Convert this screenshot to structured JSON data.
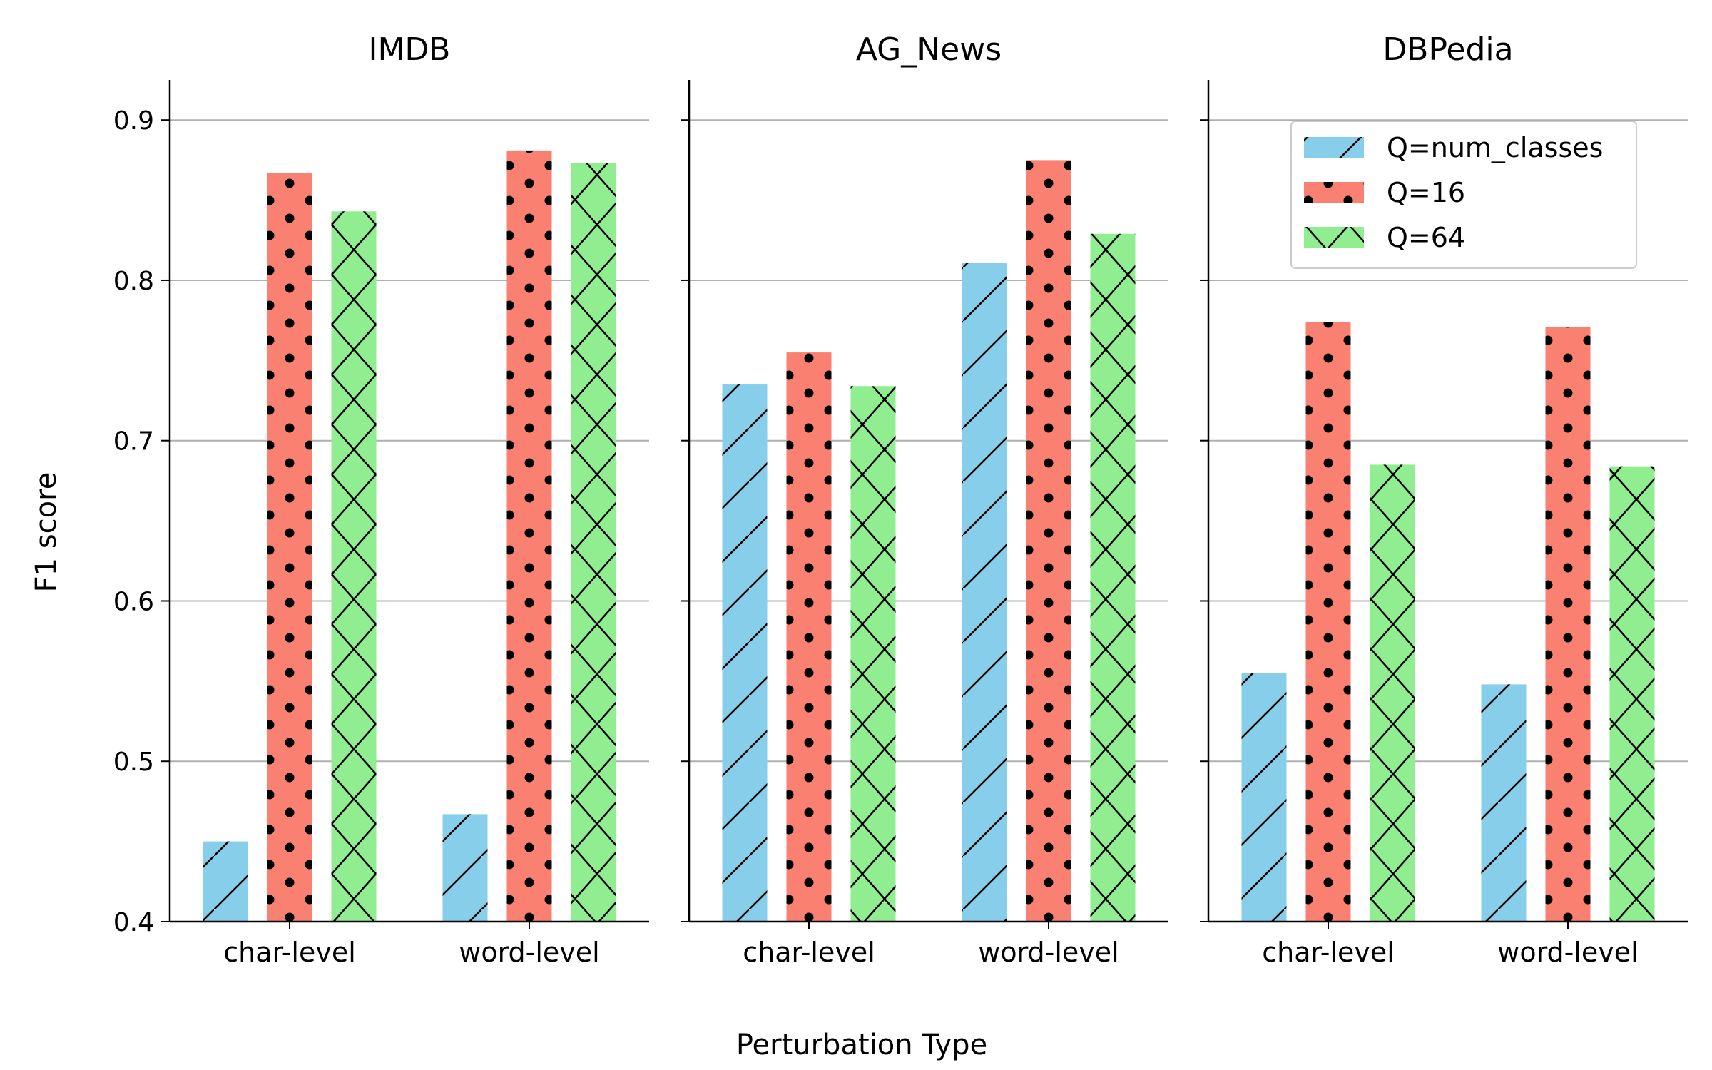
{
  "figure": {
    "ylabel": "F1 score",
    "xlabel": "Perturbation Type"
  },
  "chart_data": [
    {
      "type": "bar",
      "title": "IMDB",
      "categories": [
        "char-level",
        "word-level"
      ],
      "series": [
        {
          "name": "Q=num_classes",
          "values": [
            0.45,
            0.467
          ]
        },
        {
          "name": "Q=16",
          "values": [
            0.867,
            0.881
          ]
        },
        {
          "name": "Q=64",
          "values": [
            0.843,
            0.873
          ]
        }
      ],
      "ylim": [
        0.4,
        0.925
      ],
      "yticks": [
        "0.4",
        "0.5",
        "0.6",
        "0.7",
        "0.8",
        "0.9"
      ],
      "grid": true
    },
    {
      "type": "bar",
      "title": "AG_News",
      "categories": [
        "char-level",
        "word-level"
      ],
      "series": [
        {
          "name": "Q=num_classes",
          "values": [
            0.735,
            0.811
          ]
        },
        {
          "name": "Q=16",
          "values": [
            0.755,
            0.875
          ]
        },
        {
          "name": "Q=64",
          "values": [
            0.734,
            0.829
          ]
        }
      ],
      "ylim": [
        0.4,
        0.925
      ],
      "grid": true
    },
    {
      "type": "bar",
      "title": "DBPedia",
      "categories": [
        "char-level",
        "word-level"
      ],
      "series": [
        {
          "name": "Q=num_classes",
          "values": [
            0.555,
            0.548
          ]
        },
        {
          "name": "Q=16",
          "values": [
            0.774,
            0.771
          ]
        },
        {
          "name": "Q=64",
          "values": [
            0.685,
            0.684
          ]
        }
      ],
      "ylim": [
        0.4,
        0.925
      ],
      "grid": true,
      "legend": "top-right"
    }
  ],
  "legend": {
    "entries": [
      "Q=num_classes",
      "Q=16",
      "Q=64"
    ]
  },
  "colors": {
    "Q=num_classes": "#87ceeb",
    "Q=16": "#fa8072",
    "Q=64": "#90ee90",
    "grid": "#b0b0b0",
    "axis": "#000000"
  },
  "hatches": {
    "Q=num_classes": "diagonal",
    "Q=16": "dots",
    "Q=64": "crosshatch"
  }
}
